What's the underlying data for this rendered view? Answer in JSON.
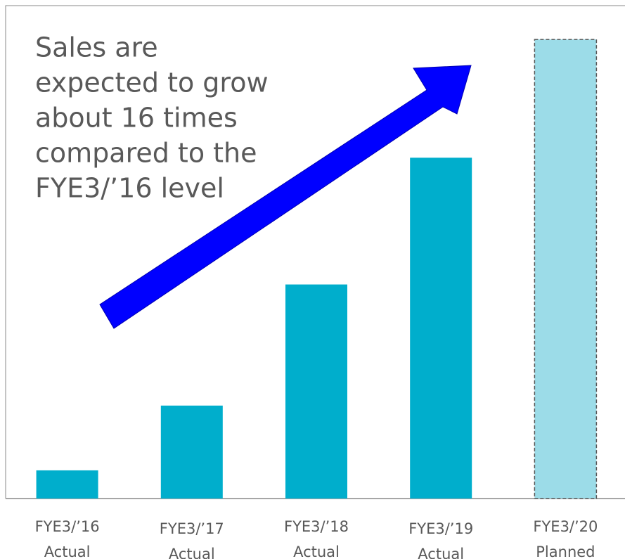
{
  "chart_data": {
    "type": "bar",
    "annotation": [
      "Sales are",
      "expected to grow",
      "about 16 times",
      "compared to the",
      "FYE3/’16 level"
    ],
    "categories": [
      [
        "FYE3/’16",
        "Actual"
      ],
      [
        "FYE3/’17",
        "Actual"
      ],
      [
        "FYE3/’18",
        "Actual"
      ],
      [
        "FYE3/’19",
        "Actual"
      ],
      [
        "FYE3/’20",
        "Planned"
      ]
    ],
    "values": [
      1,
      3.3,
      7.6,
      12.1,
      16.3
    ],
    "colors": [
      "#00aecc",
      "#00aecc",
      "#00aecc",
      "#00aecc",
      "#9cdce8"
    ],
    "outline": [
      null,
      null,
      null,
      null,
      "#555555"
    ],
    "ylim": [
      0,
      17.5
    ]
  }
}
